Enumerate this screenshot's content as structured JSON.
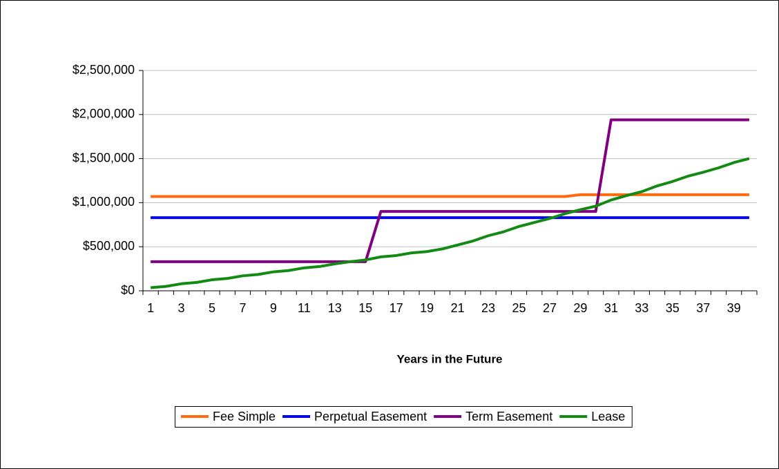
{
  "chart_data": {
    "type": "line",
    "x_label": "Years in the Future",
    "categories": [
      "1",
      null,
      "3",
      null,
      "5",
      null,
      "7",
      null,
      "9",
      null,
      "11",
      null,
      "13",
      null,
      "15",
      null,
      "17",
      null,
      "19",
      null,
      "21",
      null,
      "23",
      null,
      "25",
      null,
      "27",
      null,
      "29",
      null,
      "31",
      null,
      "33",
      null,
      "35",
      null,
      "37",
      null,
      "39",
      null
    ],
    "series": [
      {
        "name": "Fee Simple",
        "color": "#ff6a0d",
        "values": [
          1070000,
          1070000,
          1070000,
          1070000,
          1070000,
          1070000,
          1070000,
          1070000,
          1070000,
          1070000,
          1070000,
          1070000,
          1070000,
          1070000,
          1070000,
          1070000,
          1070000,
          1070000,
          1070000,
          1070000,
          1070000,
          1070000,
          1070000,
          1070000,
          1070000,
          1070000,
          1070000,
          1070000,
          1090000,
          1090000,
          1090000,
          1090000,
          1090000,
          1090000,
          1090000,
          1090000,
          1090000,
          1090000,
          1090000,
          1090000
        ]
      },
      {
        "name": "Perpetual Easement",
        "color": "#0000ff",
        "values": [
          830000,
          830000,
          830000,
          830000,
          830000,
          830000,
          830000,
          830000,
          830000,
          830000,
          830000,
          830000,
          830000,
          830000,
          830000,
          830000,
          830000,
          830000,
          830000,
          830000,
          830000,
          830000,
          830000,
          830000,
          830000,
          830000,
          830000,
          830000,
          830000,
          830000,
          830000,
          830000,
          830000,
          830000,
          830000,
          830000,
          830000,
          830000,
          830000,
          830000
        ]
      },
      {
        "name": "Term Easement",
        "color": "#800080",
        "values": [
          330000,
          330000,
          330000,
          330000,
          330000,
          330000,
          330000,
          330000,
          330000,
          330000,
          330000,
          330000,
          330000,
          330000,
          330000,
          900000,
          900000,
          900000,
          900000,
          900000,
          900000,
          900000,
          900000,
          900000,
          900000,
          900000,
          900000,
          900000,
          900000,
          900000,
          1940000,
          1940000,
          1940000,
          1940000,
          1940000,
          1940000,
          1940000,
          1940000,
          1940000,
          1940000
        ]
      },
      {
        "name": "Lease",
        "color": "#138a13",
        "values": [
          35000,
          50000,
          80000,
          95000,
          125000,
          140000,
          170000,
          185000,
          215000,
          230000,
          260000,
          275000,
          305000,
          330000,
          350000,
          385000,
          400000,
          430000,
          445000,
          475000,
          520000,
          565000,
          625000,
          670000,
          730000,
          775000,
          820000,
          875000,
          920000,
          960000,
          1030000,
          1080000,
          1125000,
          1190000,
          1240000,
          1300000,
          1345000,
          1395000,
          1455000,
          1500000
        ]
      }
    ],
    "ylim": [
      0,
      2500000
    ],
    "yticks": [
      {
        "value": 0,
        "label": "$0"
      },
      {
        "value": 500000,
        "label": "$500,000"
      },
      {
        "value": 1000000,
        "label": "$1,000,000"
      },
      {
        "value": 1500000,
        "label": "$1,500,000"
      },
      {
        "value": 2000000,
        "label": "$2,000,000"
      },
      {
        "value": 2500000,
        "label": "$2,500,000"
      }
    ],
    "grid": true,
    "legend": "bottom"
  }
}
